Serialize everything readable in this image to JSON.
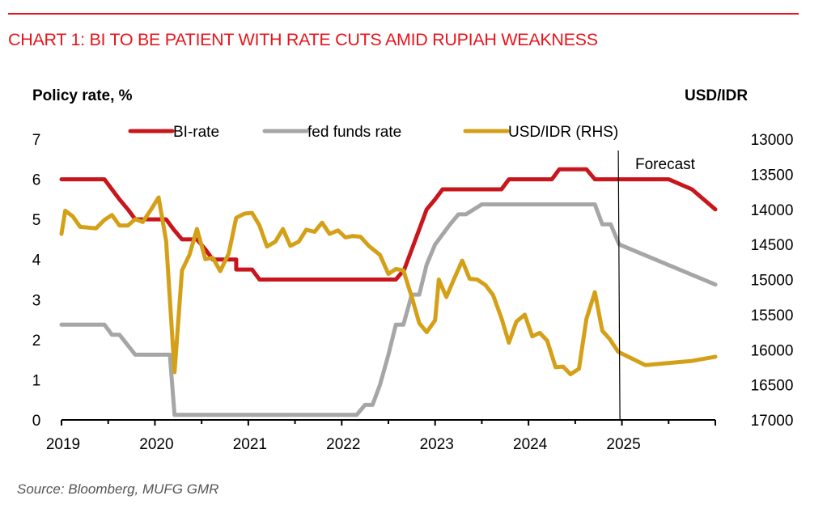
{
  "header": {
    "title": "CHART 1: BI TO BE PATIENT WITH RATE CUTS AMID RUPIAH WEAKNESS"
  },
  "footer": {
    "source": "Source: Bloomberg, MUFG GMR"
  },
  "chart_data": {
    "type": "line",
    "title": "CHART 1: BI TO BE PATIENT WITH RATE CUTS AMID RUPIAH WEAKNESS",
    "ylabel": "Policy rate, %",
    "ylabel_right": "USD/IDR",
    "xlim": [
      2019,
      2026
    ],
    "ylim": [
      0,
      7
    ],
    "ylim_right": [
      17000,
      13000
    ],
    "right_axis_inverted": true,
    "grid": false,
    "legend_position": "top",
    "x_tick_labels": [
      "2019",
      "2020",
      "2021",
      "2022",
      "2023",
      "2024",
      "2025"
    ],
    "x_tick_values": [
      2019,
      2020,
      2021,
      2022,
      2023,
      2024,
      2025
    ],
    "y_tick_labels": [
      "0",
      "1",
      "2",
      "3",
      "4",
      "5",
      "6",
      "7"
    ],
    "y_tick_values": [
      0,
      1,
      2,
      3,
      4,
      5,
      6,
      7
    ],
    "y_right_tick_labels": [
      "13000",
      "13500",
      "14000",
      "14500",
      "15000",
      "15500",
      "16000",
      "16500",
      "17000"
    ],
    "y_right_tick_values": [
      13000,
      13500,
      14000,
      14500,
      15000,
      15500,
      16000,
      16500,
      17000
    ],
    "annotations": [
      {
        "text": "Forecast",
        "x": 2024.97,
        "type": "vertical-line"
      }
    ],
    "series": [
      {
        "name": "BI-rate",
        "axis": "left",
        "color": "#c8161d",
        "points": [
          [
            2019.0,
            6.0
          ],
          [
            2019.46,
            6.0
          ],
          [
            2019.54,
            5.75
          ],
          [
            2019.62,
            5.5
          ],
          [
            2019.71,
            5.25
          ],
          [
            2019.79,
            5.0
          ],
          [
            2020.12,
            5.0
          ],
          [
            2020.2,
            4.75
          ],
          [
            2020.29,
            4.5
          ],
          [
            2020.45,
            4.5
          ],
          [
            2020.54,
            4.25
          ],
          [
            2020.62,
            4.0
          ],
          [
            2020.87,
            4.0
          ],
          [
            2020.87,
            3.75
          ],
          [
            2021.04,
            3.75
          ],
          [
            2021.12,
            3.5
          ],
          [
            2022.58,
            3.5
          ],
          [
            2022.67,
            3.75
          ],
          [
            2022.75,
            4.25
          ],
          [
            2022.83,
            4.75
          ],
          [
            2022.91,
            5.25
          ],
          [
            2023.0,
            5.5
          ],
          [
            2023.08,
            5.75
          ],
          [
            2023.71,
            5.75
          ],
          [
            2023.79,
            6.0
          ],
          [
            2024.25,
            6.0
          ],
          [
            2024.33,
            6.25
          ],
          [
            2024.62,
            6.25
          ],
          [
            2024.71,
            6.0
          ],
          [
            2025.5,
            6.0
          ],
          [
            2025.75,
            5.75
          ],
          [
            2026.0,
            5.25
          ]
        ]
      },
      {
        "name": "fed funds rate",
        "axis": "left",
        "color": "#a6a6a6",
        "points": [
          [
            2019.0,
            2.375
          ],
          [
            2019.46,
            2.375
          ],
          [
            2019.54,
            2.125
          ],
          [
            2019.62,
            2.125
          ],
          [
            2019.79,
            1.625
          ],
          [
            2020.16,
            1.625
          ],
          [
            2020.21,
            0.125
          ],
          [
            2022.16,
            0.125
          ],
          [
            2022.25,
            0.375
          ],
          [
            2022.33,
            0.375
          ],
          [
            2022.41,
            0.875
          ],
          [
            2022.5,
            1.625
          ],
          [
            2022.58,
            2.375
          ],
          [
            2022.66,
            2.375
          ],
          [
            2022.75,
            3.125
          ],
          [
            2022.83,
            3.125
          ],
          [
            2022.91,
            3.875
          ],
          [
            2023.0,
            4.375
          ],
          [
            2023.08,
            4.625
          ],
          [
            2023.16,
            4.875
          ],
          [
            2023.25,
            5.125
          ],
          [
            2023.33,
            5.125
          ],
          [
            2023.5,
            5.375
          ],
          [
            2024.71,
            5.375
          ],
          [
            2024.79,
            4.875
          ],
          [
            2024.88,
            4.875
          ],
          [
            2024.97,
            4.375
          ],
          [
            2026.0,
            3.375
          ]
        ]
      },
      {
        "name": "USD/IDR (RHS)",
        "axis": "right",
        "color": "#d4a017",
        "points": [
          [
            2019.0,
            14350
          ],
          [
            2019.04,
            14020
          ],
          [
            2019.12,
            14100
          ],
          [
            2019.2,
            14250
          ],
          [
            2019.37,
            14270
          ],
          [
            2019.46,
            14150
          ],
          [
            2019.54,
            14080
          ],
          [
            2019.62,
            14230
          ],
          [
            2019.71,
            14230
          ],
          [
            2019.79,
            14140
          ],
          [
            2019.87,
            14180
          ],
          [
            2019.96,
            14000
          ],
          [
            2020.04,
            13830
          ],
          [
            2020.12,
            14450
          ],
          [
            2020.21,
            16320
          ],
          [
            2020.29,
            14870
          ],
          [
            2020.37,
            14650
          ],
          [
            2020.45,
            14280
          ],
          [
            2020.54,
            14710
          ],
          [
            2020.62,
            14690
          ],
          [
            2020.7,
            14880
          ],
          [
            2020.79,
            14630
          ],
          [
            2020.87,
            14120
          ],
          [
            2020.96,
            14060
          ],
          [
            2021.04,
            14050
          ],
          [
            2021.12,
            14230
          ],
          [
            2021.2,
            14530
          ],
          [
            2021.29,
            14460
          ],
          [
            2021.37,
            14280
          ],
          [
            2021.45,
            14520
          ],
          [
            2021.54,
            14460
          ],
          [
            2021.62,
            14290
          ],
          [
            2021.71,
            14320
          ],
          [
            2021.79,
            14190
          ],
          [
            2021.87,
            14350
          ],
          [
            2021.96,
            14300
          ],
          [
            2022.04,
            14400
          ],
          [
            2022.12,
            14380
          ],
          [
            2022.2,
            14390
          ],
          [
            2022.29,
            14520
          ],
          [
            2022.41,
            14650
          ],
          [
            2022.5,
            14920
          ],
          [
            2022.58,
            14850
          ],
          [
            2022.66,
            14870
          ],
          [
            2022.75,
            15250
          ],
          [
            2022.83,
            15620
          ],
          [
            2022.91,
            15750
          ],
          [
            2023.0,
            15580
          ],
          [
            2023.04,
            15000
          ],
          [
            2023.12,
            15250
          ],
          [
            2023.2,
            15000
          ],
          [
            2023.29,
            14730
          ],
          [
            2023.37,
            14990
          ],
          [
            2023.45,
            15000
          ],
          [
            2023.54,
            15080
          ],
          [
            2023.62,
            15220
          ],
          [
            2023.71,
            15550
          ],
          [
            2023.79,
            15900
          ],
          [
            2023.87,
            15600
          ],
          [
            2023.96,
            15500
          ],
          [
            2024.04,
            15810
          ],
          [
            2024.12,
            15760
          ],
          [
            2024.2,
            15870
          ],
          [
            2024.29,
            16250
          ],
          [
            2024.37,
            16240
          ],
          [
            2024.45,
            16350
          ],
          [
            2024.54,
            16270
          ],
          [
            2024.62,
            15560
          ],
          [
            2024.71,
            15180
          ],
          [
            2024.79,
            15730
          ],
          [
            2024.87,
            15850
          ],
          [
            2024.96,
            16030
          ],
          [
            2025.25,
            16220
          ],
          [
            2025.75,
            16160
          ],
          [
            2026.0,
            16100
          ]
        ]
      }
    ]
  }
}
